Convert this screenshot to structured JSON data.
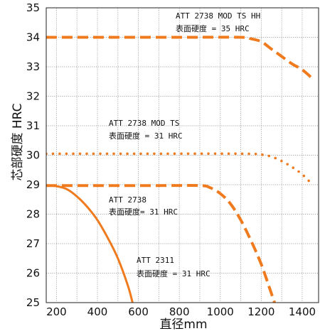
{
  "chart_data": {
    "type": "line",
    "xlabel": "直径mm",
    "ylabel": "芯部硬度 HRC",
    "xlim": [
      150,
      1480
    ],
    "ylim": [
      25,
      35
    ],
    "x_ticks": [
      200,
      400,
      600,
      800,
      1000,
      1200,
      1400
    ],
    "y_ticks": [
      25,
      26,
      27,
      28,
      29,
      30,
      31,
      32,
      33,
      34,
      35
    ],
    "grid": true,
    "series_color": "#f07a1e",
    "series": [
      {
        "style": "dashed",
        "points": [
          [
            150,
            34.0
          ],
          [
            400,
            34.0
          ],
          [
            800,
            34.0
          ],
          [
            1100,
            34.0
          ],
          [
            1150,
            33.95
          ],
          [
            1200,
            33.85
          ],
          [
            1250,
            33.6
          ],
          [
            1300,
            33.35
          ],
          [
            1350,
            33.1
          ],
          [
            1400,
            32.9
          ],
          [
            1450,
            32.6
          ]
        ],
        "annotation": [
          "ATT 2738 MOD TS HH",
          "表面硬度 = 35 HRC"
        ]
      },
      {
        "style": "dotted",
        "points": [
          [
            150,
            30.05
          ],
          [
            600,
            30.05
          ],
          [
            1100,
            30.05
          ],
          [
            1200,
            30.02
          ],
          [
            1250,
            29.95
          ],
          [
            1300,
            29.8
          ],
          [
            1350,
            29.6
          ],
          [
            1400,
            29.35
          ],
          [
            1450,
            29.0
          ]
        ],
        "annotation": [
          "ATT 2738 MOD TS",
          "表面硬度 = 31 HRC"
        ]
      },
      {
        "style": "dashed",
        "points": [
          [
            150,
            28.97
          ],
          [
            300,
            28.97
          ],
          [
            700,
            28.97
          ],
          [
            900,
            28.97
          ],
          [
            950,
            28.9
          ],
          [
            1000,
            28.7
          ],
          [
            1050,
            28.35
          ],
          [
            1100,
            27.8
          ],
          [
            1150,
            27.1
          ],
          [
            1200,
            26.3
          ],
          [
            1250,
            25.3
          ],
          [
            1270,
            24.9
          ]
        ],
        "annotation": [
          "ATT 2738",
          "表面硬度= 31 HRC"
        ]
      },
      {
        "style": "solid",
        "points": [
          [
            150,
            28.98
          ],
          [
            200,
            28.95
          ],
          [
            250,
            28.85
          ],
          [
            300,
            28.6
          ],
          [
            350,
            28.25
          ],
          [
            400,
            27.8
          ],
          [
            450,
            27.2
          ],
          [
            500,
            26.5
          ],
          [
            550,
            25.55
          ],
          [
            575,
            24.9
          ]
        ],
        "annotation": [
          "ATT 2311",
          "表面硬度   = 31 HRC"
        ]
      }
    ]
  }
}
